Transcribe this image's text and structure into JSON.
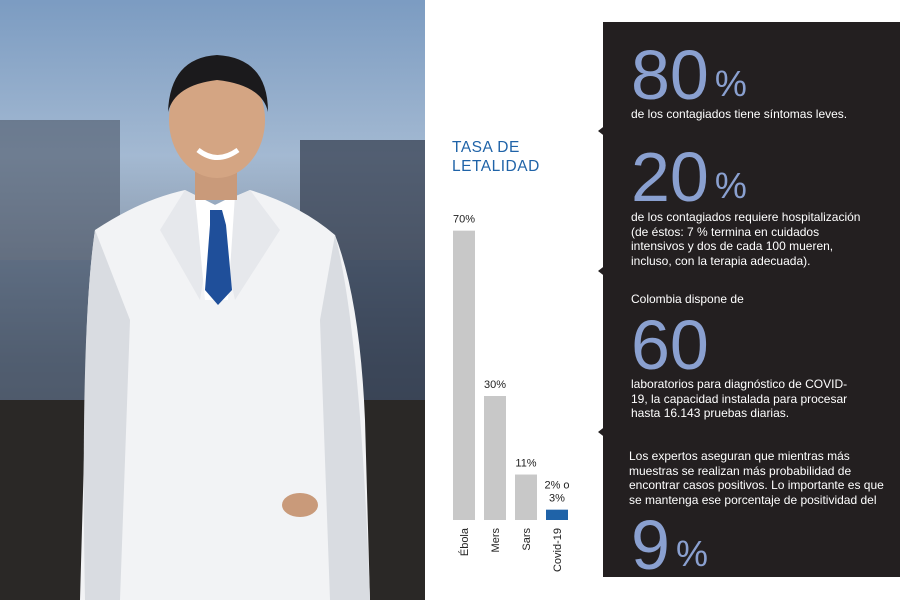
{
  "chart_data": {
    "type": "bar",
    "title": "TASA DE LETALIDAD",
    "categories": [
      "Ébola",
      "Mers",
      "Sars",
      "Covid-19"
    ],
    "values": [
      70,
      30,
      11,
      2.5
    ],
    "value_labels": [
      "70%",
      "30%",
      "11%",
      "2% o 3%"
    ],
    "colors": [
      "#c8c8c8",
      "#c8c8c8",
      "#c8c8c8",
      "#1f63a8"
    ],
    "ylim": [
      0,
      75
    ],
    "grid": false
  },
  "stats": [
    {
      "number": "80",
      "unit": "%",
      "text": "de los contagiados tiene síntomas leves."
    },
    {
      "number": "20",
      "unit": "%",
      "text": "de los contagiados requiere hospitalización (de éstos: 7 % termina en cuidados intensivos y dos de cada 100 mueren, incluso, con la terapia adecuada)."
    },
    {
      "lead": "Colombia dispone de",
      "number": "60",
      "unit": "",
      "text": "laboratorios para diagnóstico de COVID-19, la capacidad instalada para procesar hasta 16.143 pruebas diarias."
    },
    {
      "lead": "Los expertos aseguran que mientras más muestras se realizan más probabilidad de encontrar casos positivos. Lo importante es que se mantenga ese porcentaje de positividad del",
      "number": "9",
      "unit": "%"
    }
  ],
  "colors": {
    "panel": "#231f20",
    "accent_number": "#8aa0d0",
    "title_blue": "#1f63a8",
    "bar_gray": "#c8c8c8"
  }
}
